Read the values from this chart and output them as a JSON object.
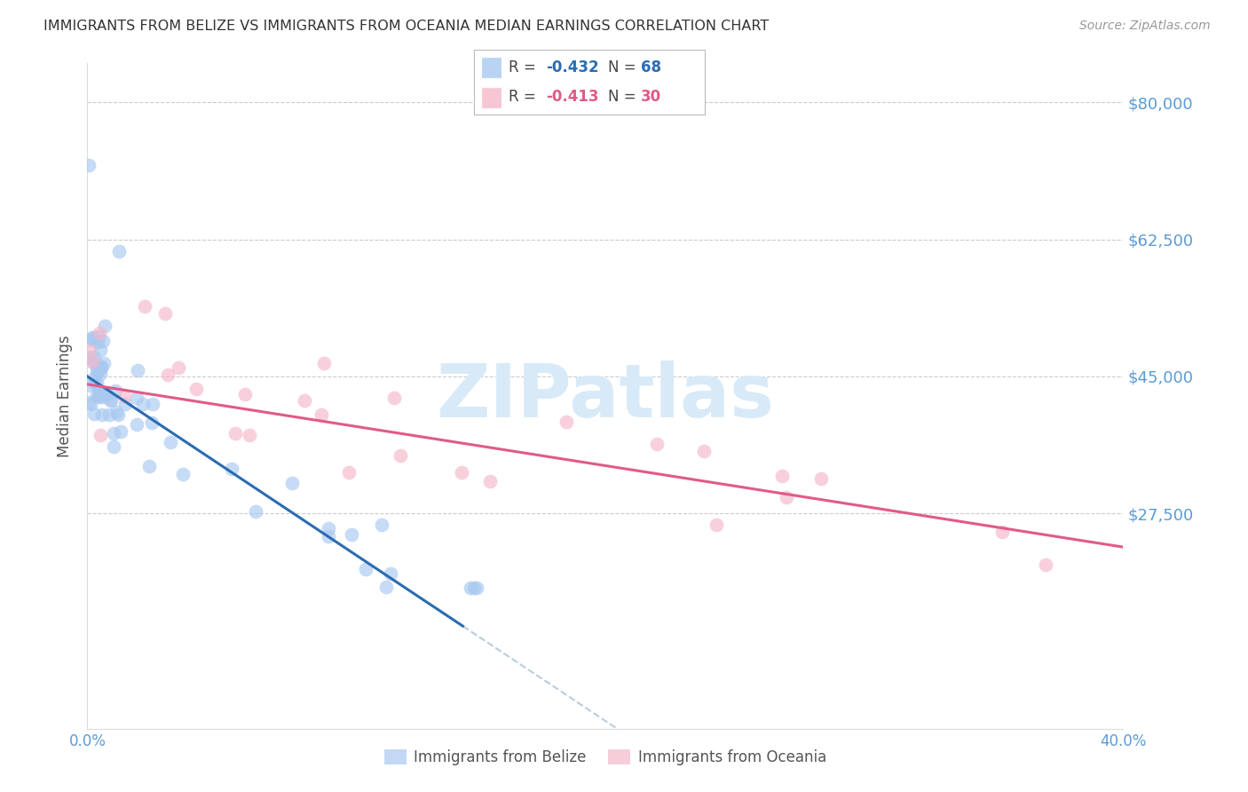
{
  "title": "IMMIGRANTS FROM BELIZE VS IMMIGRANTS FROM OCEANIA MEDIAN EARNINGS CORRELATION CHART",
  "source": "Source: ZipAtlas.com",
  "ylabel": "Median Earnings",
  "xlim": [
    0.0,
    0.4
  ],
  "ylim": [
    0,
    85000
  ],
  "yticks": [
    0,
    27500,
    45000,
    62500,
    80000
  ],
  "ytick_labels": [
    "",
    "$27,500",
    "$45,000",
    "$62,500",
    "$80,000"
  ],
  "xticks": [
    0.0,
    0.1,
    0.2,
    0.3,
    0.4
  ],
  "xtick_labels": [
    "0.0%",
    "",
    "",
    "",
    "40.0%"
  ],
  "belize_color": "#A8C8F0",
  "oceania_color": "#F5B8CA",
  "belize_line_color": "#2B6CB0",
  "oceania_line_color": "#E05A8A",
  "R_belize": -0.432,
  "N_belize": 68,
  "R_oceania": -0.413,
  "N_oceania": 30,
  "legend_label_belize": "Immigrants from Belize",
  "legend_label_oceania": "Immigrants from Oceania",
  "tick_color": "#5B9BD5",
  "axis_label_color": "#555555",
  "watermark_color": "#D8EAF8",
  "background_color": "#FFFFFF",
  "grid_color": "#CCCCCC",
  "dash_color": "#BBCCDD",
  "belize_intercept": 45000,
  "belize_slope": -220000,
  "oceania_intercept": 44000,
  "oceania_slope": -52000,
  "belize_line_xend": 0.145,
  "belize_dash_xstart": 0.145,
  "belize_dash_xend": 0.32,
  "oceania_line_xstart": 0.0,
  "oceania_line_xend": 0.4
}
